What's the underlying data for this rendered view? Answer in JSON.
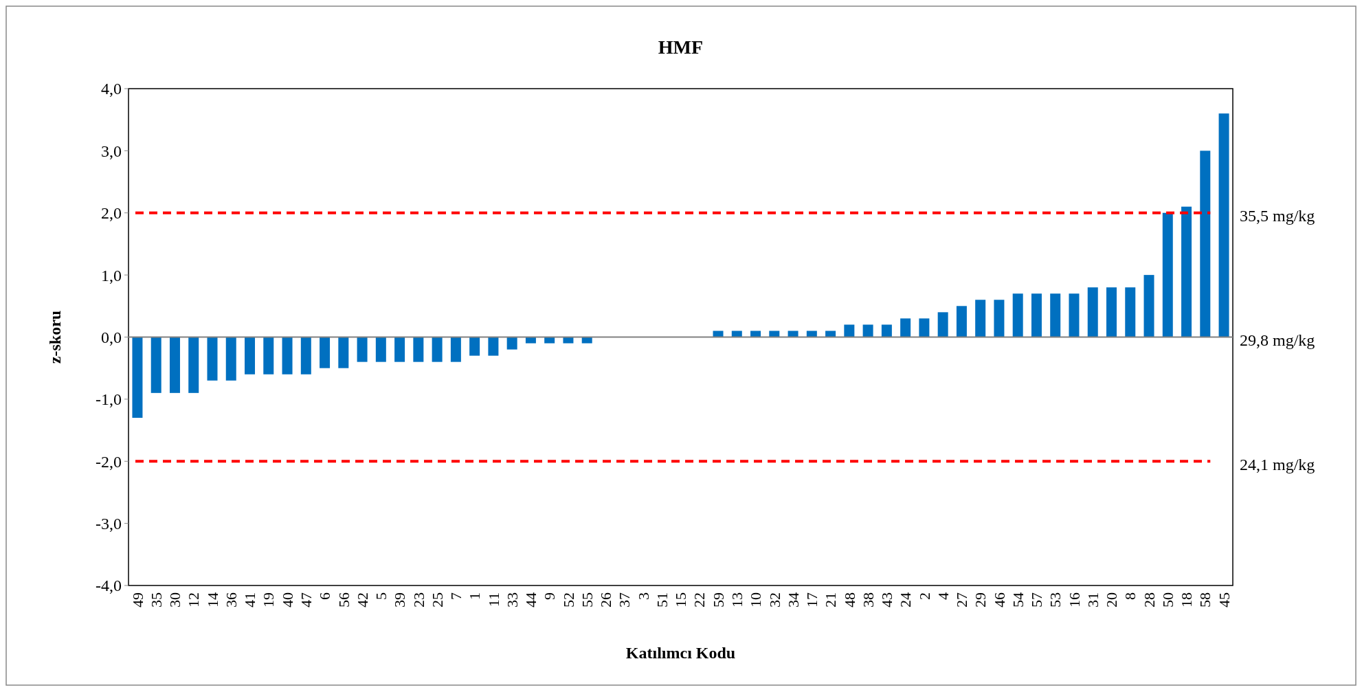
{
  "chart_data": {
    "type": "bar",
    "title": "HMF",
    "xlabel": "Katılımcı Kodu",
    "ylabel": "z-skoru",
    "categories": [
      "49",
      "35",
      "30",
      "12",
      "14",
      "36",
      "41",
      "19",
      "40",
      "47",
      "6",
      "56",
      "42",
      "5",
      "39",
      "23",
      "25",
      "7",
      "1",
      "11",
      "33",
      "44",
      "9",
      "52",
      "55",
      "26",
      "37",
      "3",
      "51",
      "15",
      "22",
      "59",
      "13",
      "10",
      "32",
      "34",
      "17",
      "21",
      "48",
      "38",
      "43",
      "24",
      "2",
      "4",
      "27",
      "29",
      "46",
      "54",
      "57",
      "53",
      "16",
      "31",
      "20",
      "8",
      "28",
      "50",
      "18",
      "58",
      "45"
    ],
    "values": [
      -1.3,
      -0.9,
      -0.9,
      -0.9,
      -0.7,
      -0.7,
      -0.6,
      -0.6,
      -0.6,
      -0.6,
      -0.5,
      -0.5,
      -0.4,
      -0.4,
      -0.4,
      -0.4,
      -0.4,
      -0.4,
      -0.3,
      -0.3,
      -0.2,
      -0.1,
      -0.1,
      -0.1,
      -0.1,
      0,
      0,
      0,
      0,
      0,
      0,
      0.1,
      0.1,
      0.1,
      0.1,
      0.1,
      0.1,
      0.1,
      0.2,
      0.2,
      0.2,
      0.3,
      0.3,
      0.4,
      0.5,
      0.6,
      0.6,
      0.7,
      0.7,
      0.7,
      0.7,
      0.8,
      0.8,
      0.8,
      1.0,
      2.0,
      2.1,
      3.0,
      3.6
    ],
    "color": "#0070c0",
    "ylim": [
      -4,
      4
    ],
    "yticks": [
      {
        "value": -4,
        "label": "-4,0"
      },
      {
        "value": -3,
        "label": "-3,0"
      },
      {
        "value": -2,
        "label": "-2,0"
      },
      {
        "value": -1,
        "label": "-1,0"
      },
      {
        "value": 0,
        "label": "0,0"
      },
      {
        "value": 1,
        "label": "1,0"
      },
      {
        "value": 2,
        "label": "2,0"
      },
      {
        "value": 3,
        "label": "3,0"
      },
      {
        "value": 4,
        "label": "4,0"
      }
    ],
    "grid": false,
    "ref_lines": [
      {
        "axis": "y",
        "value": 2,
        "label": "35,5 mg/kg",
        "color": "#ff0000",
        "line_style": "dashed"
      },
      {
        "axis": "y",
        "value": 0,
        "label": "29,8 mg/kg",
        "color": "#808080",
        "line_style": "solid"
      },
      {
        "axis": "y",
        "value": -2,
        "label": "24,1 mg/kg",
        "color": "#ff0000",
        "line_style": "dashed"
      }
    ]
  }
}
